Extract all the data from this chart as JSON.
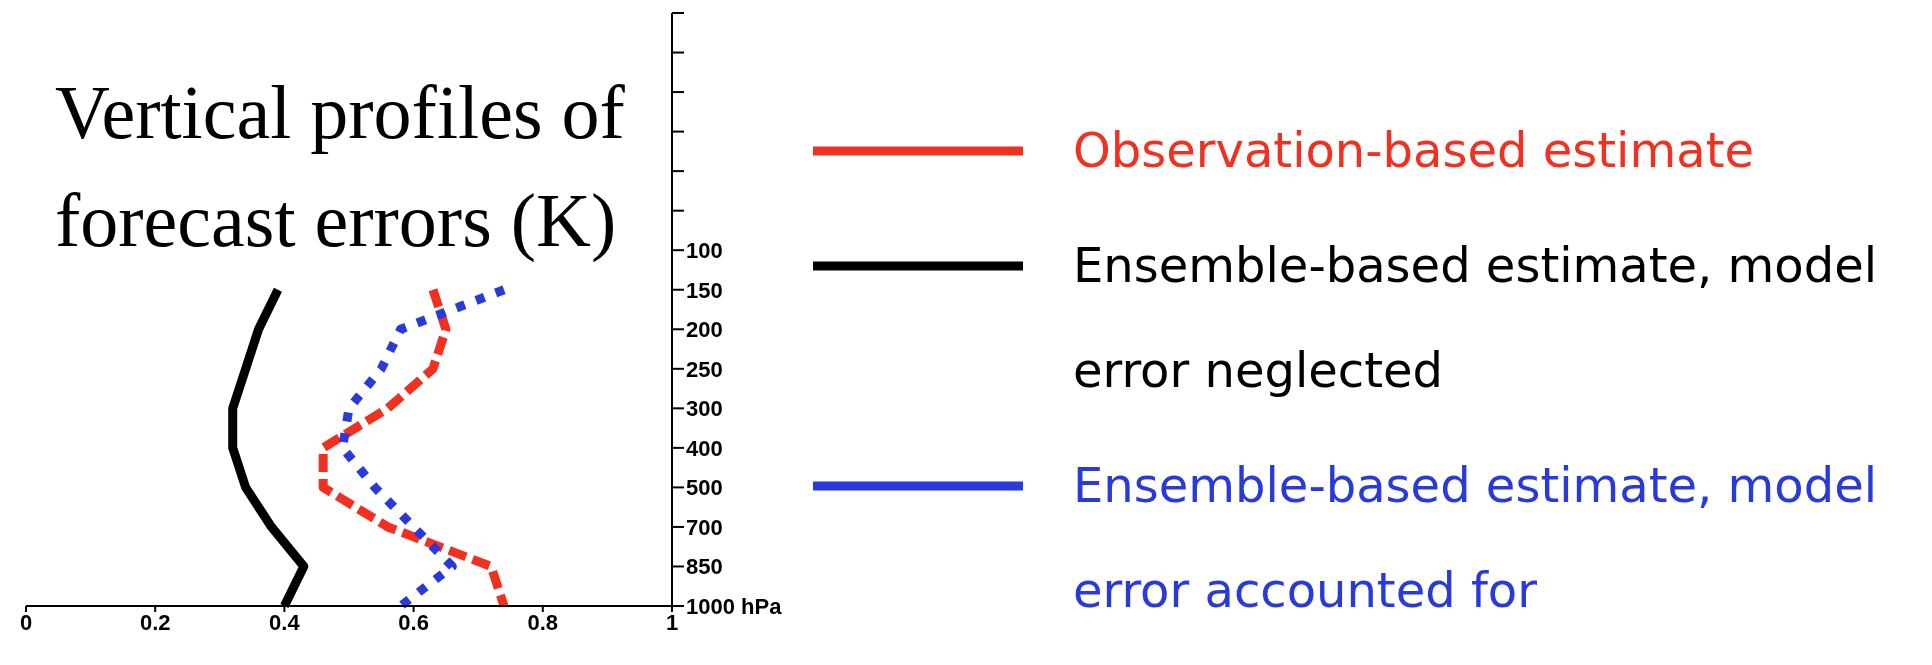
{
  "chart_data": {
    "type": "line",
    "title": "Vertical profiles of forecast errors (K)",
    "orientation": "horizontal",
    "categories": [
      null,
      null,
      null,
      null,
      null,
      null,
      "100",
      "150",
      "200",
      "250",
      "300",
      "400",
      "500",
      "700",
      "850",
      "1000 hPa"
    ],
    "series": [
      {
        "name": "Observation-based estimate",
        "color": "#f03020",
        "line_style": "dashed",
        "values": [
          null,
          null,
          null,
          null,
          null,
          null,
          null,
          0.63,
          0.65,
          0.63,
          0.56,
          0.46,
          0.46,
          0.56,
          0.72,
          0.74
        ]
      },
      {
        "name": "Ensemble-based estimate, model error neglected",
        "color": "#000000",
        "line_style": "solid",
        "values": [
          null,
          null,
          null,
          null,
          null,
          null,
          null,
          0.39,
          0.36,
          0.34,
          0.32,
          0.32,
          0.34,
          0.38,
          0.43,
          0.4
        ]
      },
      {
        "name": "Ensemble-based estimate, model error accounted for",
        "color": "#2a3ad8",
        "line_style": "dotted",
        "values": [
          null,
          null,
          null,
          null,
          null,
          null,
          null,
          0.74,
          0.58,
          0.55,
          0.5,
          0.49,
          0.54,
          0.6,
          0.66,
          0.58
        ]
      }
    ],
    "xlim": [
      0,
      1
    ],
    "xticks": [
      0,
      0.2,
      0.4,
      0.6,
      0.8,
      1
    ],
    "legend": "right"
  }
}
